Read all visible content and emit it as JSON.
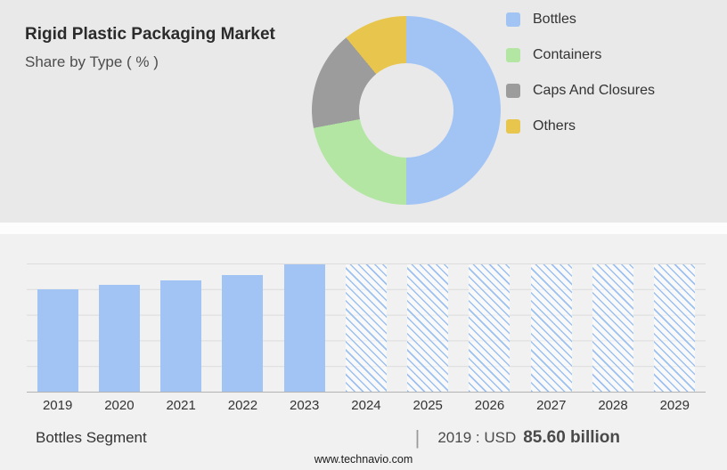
{
  "header": {
    "title": "Rigid Plastic Packaging Market",
    "subtitle": "Share by Type ( % )"
  },
  "colors": {
    "top_panel_bg": "#e9e9e9",
    "bottom_panel_bg": "#f1f1f1",
    "bottles": "#a2c4f5",
    "containers": "#b3e6a3",
    "caps_and_closures": "#9c9c9c",
    "others": "#e8c64e"
  },
  "chart_data": [
    {
      "type": "pie",
      "donut": true,
      "title": "Rigid Plastic Packaging Market — Share by Type ( % )",
      "labels": [
        "Bottles",
        "Containers",
        "Caps And Closures",
        "Others"
      ],
      "values": [
        50,
        22,
        17,
        11
      ],
      "colors": [
        "#a2c4f5",
        "#b3e6a3",
        "#9c9c9c",
        "#e8c64e"
      ],
      "legend_position": "right"
    },
    {
      "type": "bar",
      "categories": [
        "2019",
        "2020",
        "2021",
        "2022",
        "2023",
        "2024",
        "2025",
        "2026",
        "2027",
        "2028",
        "2029"
      ],
      "values_relative": [
        80,
        83,
        87,
        91,
        99,
        99,
        99,
        99,
        99,
        99,
        99
      ],
      "forecast_from_index": 5,
      "bar_color": "#a2c4f5",
      "forecast_pattern_color": "#9cc1f0",
      "xlabel": "",
      "ylabel": "",
      "grid": true,
      "annotation": "2019 : USD 85.60 billion"
    }
  ],
  "footer": {
    "segment_label": "Bottles Segment",
    "divider": "|",
    "value_prefix": "2019 : USD",
    "value_bold": "85.60 billion",
    "website": "www.technavio.com"
  }
}
